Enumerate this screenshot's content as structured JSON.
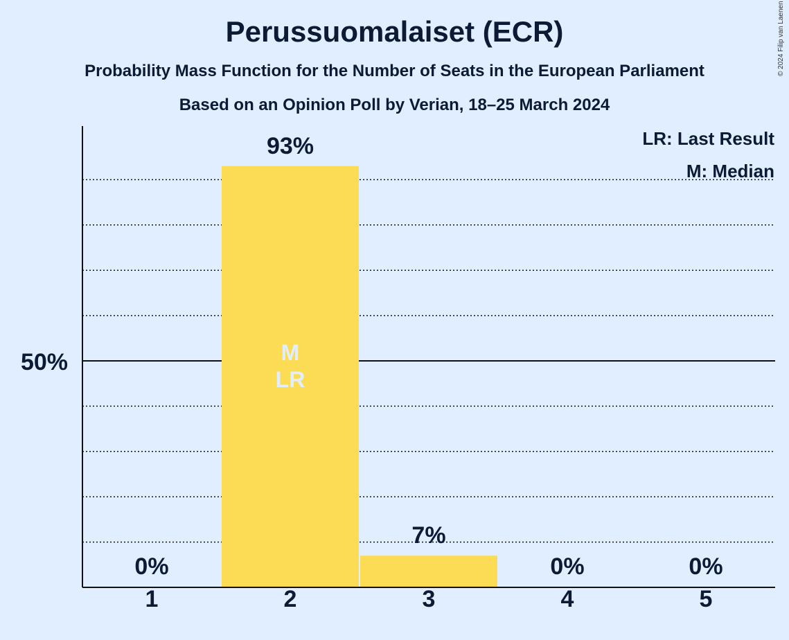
{
  "title": "Perussuomalaiset (ECR)",
  "subtitle": "Probability Mass Function for the Number of Seats in the European Parliament",
  "subtitle2": "Based on an Opinion Poll by Verian, 18–25 March 2024",
  "copyright": "© 2024 Filip van Laenen",
  "colors": {
    "bar": "#fcdc54",
    "background": "#e0eeff",
    "text": "#0c1a33",
    "inbar_text": "#e0eeff"
  },
  "legend": {
    "lr": "LR: Last Result",
    "m": "M: Median",
    "position": "top-right"
  },
  "chart_data": {
    "type": "bar",
    "categories": [
      "1",
      "2",
      "3",
      "4",
      "5"
    ],
    "values": [
      0,
      93,
      7,
      0,
      0
    ],
    "value_labels": [
      "0%",
      "93%",
      "7%",
      "0%",
      "0%"
    ],
    "ylim": [
      0,
      100
    ],
    "ytick_label": "50%",
    "ytick_value": 50,
    "gridlines": [
      10,
      20,
      30,
      40,
      60,
      70,
      80,
      90
    ],
    "median_category": "2",
    "last_result_category": "2",
    "median_label": "M",
    "last_result_label": "LR"
  }
}
